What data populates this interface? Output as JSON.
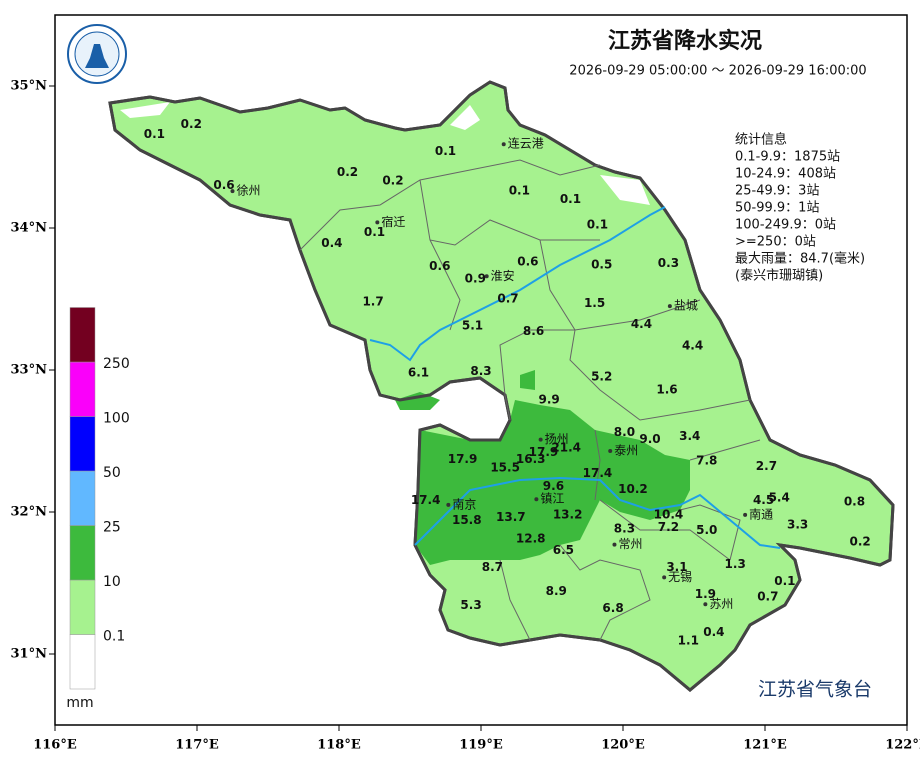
{
  "header": {
    "title": "江苏省降水实况",
    "time_range": "2026-09-29 05:00:00 ～ 2026-09-29 16:00:00"
  },
  "stats": [
    "统计信息",
    "0.1-9.9：1875站",
    "10-24.9：408站",
    "25-49.9：3站",
    "50-99.9：1站",
    "100-249.9：0站",
    ">=250：0站",
    "最大雨量：84.7(毫米)",
    "(泰兴市珊瑚镇)"
  ],
  "footer": "江苏省气象台",
  "chart_data": {
    "type": "map",
    "xlim": [
      116,
      122
    ],
    "ylim": [
      30.5,
      35.5
    ],
    "xticks": [
      {
        "value": 116,
        "label": "116°E"
      },
      {
        "value": 117,
        "label": "117°E"
      },
      {
        "value": 118,
        "label": "118°E"
      },
      {
        "value": 119,
        "label": "119°E"
      },
      {
        "value": 120,
        "label": "120°E"
      },
      {
        "value": 121,
        "label": "121°E"
      },
      {
        "value": 122,
        "label": "122°E"
      }
    ],
    "yticks": [
      {
        "value": 31,
        "label": "31°N"
      },
      {
        "value": 32,
        "label": "32°N"
      },
      {
        "value": 33,
        "label": "33°N"
      },
      {
        "value": 34,
        "label": "34°N"
      },
      {
        "value": 35,
        "label": "35°N"
      }
    ],
    "legend": {
      "levels": [
        0.1,
        10,
        25,
        50,
        100,
        250
      ],
      "colors": [
        "#ffffff",
        "#a6f28f",
        "#3dba3d",
        "#61b8ff",
        "#0000fe",
        "#fa00fa",
        "#730020"
      ],
      "unit": "mm"
    },
    "stations": {
      "lon": [
        116.7,
        116.96,
        117.19,
        118.06,
        118.38,
        118.75,
        119.27,
        119.63,
        119.82,
        118.25,
        117.95,
        118.71,
        118.96,
        119.33,
        119.85,
        120.32,
        119.19,
        118.24,
        119.8,
        118.94,
        119.37,
        120.13,
        120.49,
        118.56,
        119.0,
        119.85,
        120.31,
        119.48,
        120.01,
        120.19,
        120.47,
        118.87,
        119.17,
        119.35,
        119.44,
        119.6,
        120.59,
        121.01,
        119.82,
        119.51,
        120.07,
        118.61,
        120.99,
        121.1,
        121.63,
        119.21,
        119.61,
        118.9,
        120.32,
        120.32,
        120.01,
        120.59,
        121.23,
        121.67,
        119.35,
        119.58,
        120.38,
        120.79,
        119.08,
        121.14,
        119.53,
        120.58,
        121.02,
        118.93,
        119.93,
        120.64,
        120.46
      ],
      "lat": [
        34.66,
        34.73,
        34.3,
        34.39,
        34.33,
        34.54,
        34.26,
        34.2,
        34.02,
        33.97,
        33.89,
        33.73,
        33.64,
        33.76,
        33.74,
        33.75,
        33.5,
        33.48,
        33.47,
        33.31,
        33.27,
        33.32,
        33.17,
        32.98,
        32.99,
        32.95,
        32.86,
        32.79,
        32.56,
        32.51,
        32.53,
        32.37,
        32.31,
        32.37,
        32.42,
        32.45,
        32.36,
        32.32,
        32.27,
        32.18,
        32.16,
        32.08,
        32.08,
        32.1,
        32.07,
        31.96,
        31.98,
        31.94,
        31.98,
        31.89,
        31.88,
        31.87,
        31.91,
        31.79,
        31.81,
        31.73,
        31.61,
        31.63,
        31.61,
        31.51,
        31.44,
        31.42,
        31.4,
        31.34,
        31.32,
        31.15,
        31.09
      ],
      "values": [
        0.1,
        0.2,
        0.6,
        0.2,
        0.2,
        0.1,
        0.1,
        0.1,
        0.1,
        0.1,
        0.4,
        0.6,
        0.9,
        0.6,
        0.5,
        0.3,
        0.7,
        1.7,
        1.5,
        5.1,
        8.6,
        4.4,
        4.4,
        6.1,
        8.3,
        5.2,
        1.6,
        9.9,
        8.0,
        9.0,
        3.4,
        17.9,
        15.5,
        16.3,
        17.9,
        21.4,
        7.8,
        2.7,
        17.4,
        9.6,
        10.2,
        17.4,
        4.5,
        5.4,
        0.8,
        13.7,
        13.2,
        15.8,
        10.4,
        7.2,
        8.3,
        5.0,
        3.3,
        0.2,
        12.8,
        6.5,
        3.1,
        1.3,
        8.7,
        0.1,
        8.9,
        1.9,
        0.7,
        5.3,
        6.8,
        0.4,
        1.1
      ],
      "value_labels": [
        "0.1",
        "0.2",
        "0.6",
        "0.2",
        "0.2",
        "0.1",
        "0.1",
        "0.1",
        "0.1",
        "0.1",
        "0.4",
        "0.6",
        "0.9",
        "0.6",
        "0.5",
        "0.3",
        "0.7",
        "1.7",
        "1.5",
        "5.1",
        "8.6",
        "4.4",
        "4.4",
        "6.1",
        "8.3",
        "5.2",
        "1.6",
        "9.9",
        "8.0",
        "9.0",
        "3.4",
        "17.9",
        "15.5",
        "16.3",
        "17.9",
        "21.4",
        "7.8",
        "2.7",
        "17.4",
        "9.6",
        "10.2",
        "17.4",
        "4.5",
        "5.4",
        "0.8",
        "13.7",
        "13.2",
        "15.8",
        "10.4",
        "7.2",
        "8.3",
        "5.0",
        "3.3",
        "0.2",
        "12.8",
        "6.5",
        "3.1",
        "1.3",
        "8.7",
        "0.1",
        "8.9",
        "1.9",
        "0.7",
        "5.3",
        "6.8",
        "0.4",
        "1.1"
      ]
    },
    "cities": [
      {
        "name": "连云港",
        "lon": 119.16,
        "lat": 34.59
      },
      {
        "name": "宿迁",
        "lon": 118.27,
        "lat": 34.04
      },
      {
        "name": "徐州",
        "lon": 117.25,
        "lat": 34.26
      },
      {
        "name": "淮安",
        "lon": 119.04,
        "lat": 33.66
      },
      {
        "name": "盐城",
        "lon": 120.33,
        "lat": 33.45
      },
      {
        "name": "扬州",
        "lon": 119.42,
        "lat": 32.51
      },
      {
        "name": "泰州",
        "lon": 119.91,
        "lat": 32.43
      },
      {
        "name": "南京",
        "lon": 118.77,
        "lat": 32.05
      },
      {
        "name": "镇江",
        "lon": 119.39,
        "lat": 32.09
      },
      {
        "name": "常州",
        "lon": 119.94,
        "lat": 31.77
      },
      {
        "name": "无锡",
        "lon": 120.29,
        "lat": 31.54
      },
      {
        "name": "苏州",
        "lon": 120.58,
        "lat": 31.35
      },
      {
        "name": "南通",
        "lon": 120.86,
        "lat": 31.98
      }
    ]
  }
}
